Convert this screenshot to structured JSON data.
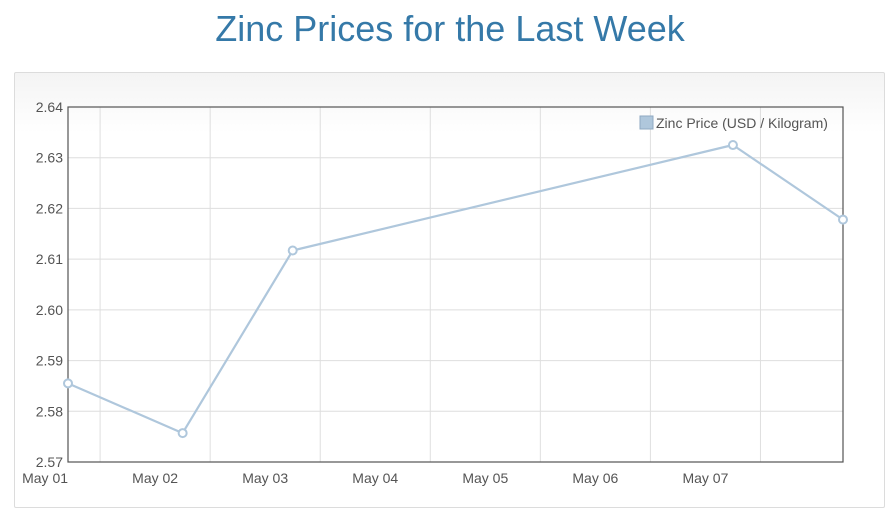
{
  "page": {
    "title": "Zinc Prices for the Last Week"
  },
  "colors": {
    "title": "#3579a8",
    "series": "#afc7dc",
    "grid": "#dedede",
    "axis": "#545454"
  },
  "chart_data": {
    "type": "line",
    "title": "Zinc Prices for the Last Week",
    "xlabel": "",
    "ylabel": "",
    "x_ticks": [
      "May 01",
      "May 02",
      "May 03",
      "May 04",
      "May 05",
      "May 06",
      "May 07"
    ],
    "y_ticks": [
      "2.57",
      "2.58",
      "2.59",
      "2.60",
      "2.61",
      "2.62",
      "2.63",
      "2.64"
    ],
    "xlim": [
      "2015-04-30T17:00",
      "2015-05-07T18:00"
    ],
    "ylim": [
      2.57,
      2.64
    ],
    "grid": true,
    "legend_position": "top-right",
    "series": [
      {
        "name": "Zinc Price (USD / Kilogram)",
        "points": [
          {
            "x": "2015-04-30T17:00",
            "y": 2.5855
          },
          {
            "x": "2015-05-01T18:00",
            "y": 2.5757
          },
          {
            "x": "2015-05-02T18:00",
            "y": 2.6117
          },
          {
            "x": "2015-05-06T18:00",
            "y": 2.6325
          },
          {
            "x": "2015-05-07T18:00",
            "y": 2.6178
          }
        ]
      }
    ]
  }
}
